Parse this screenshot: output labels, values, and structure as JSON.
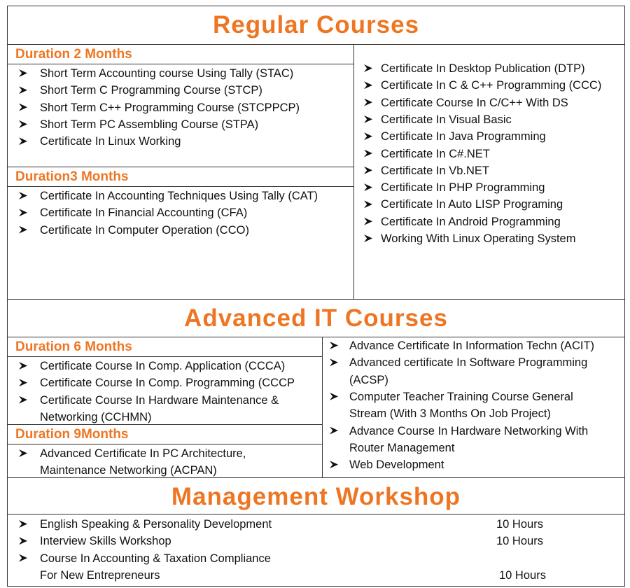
{
  "sections": [
    {
      "title": "Regular Courses",
      "groups": [
        {
          "heading": "Duration 2 Months",
          "items": [
            [
              "Short Term Accounting course Using Tally (STAC)"
            ],
            [
              "Short Term C Programming Course (STCP)"
            ],
            [
              "Short Term C++ Programming Course (STCPPCP)"
            ],
            [
              "Short Term PC Assembling Course (STPA)"
            ],
            [
              "Certificate In Linux Working"
            ]
          ]
        },
        {
          "heading": "Duration3 Months",
          "items": [
            [
              "Certificate In Accounting Techniques Using Tally (CAT)"
            ],
            [
              "Certificate In Financial Accounting (CFA)"
            ],
            [
              "Certificate In Computer Operation (CCO)"
            ]
          ]
        }
      ],
      "right_items": [
        [
          "Certificate In Desktop Publication (DTP)"
        ],
        [
          "Certificate In C & C++ Programming (CCC)"
        ],
        [
          "Certificate Course In C/C++ With DS"
        ],
        [
          "Certificate In Visual Basic"
        ],
        [
          "Certificate In Java Programming"
        ],
        [
          "Certificate In C#.NET"
        ],
        [
          "Certificate In Vb.NET"
        ],
        [
          "Certificate In PHP Programming"
        ],
        [
          "Certificate In Auto LISP Programing"
        ],
        [
          "Certificate In Android Programming"
        ],
        [
          "Working With Linux Operating System"
        ]
      ]
    },
    {
      "title": "Advanced IT Courses",
      "groups": [
        {
          "heading": "Duration 6 Months",
          "items": [
            [
              "Certificate Course In Comp. Application (CCCA)"
            ],
            [
              "Certificate Course In Comp. Programming (CCCP"
            ],
            [
              "Certificate Course In Hardware Maintenance &",
              "Networking (CCHMN)"
            ]
          ]
        },
        {
          "heading": "Duration 9Months",
          "items": [
            [
              "Advanced Certificate In PC Architecture,",
              "Maintenance  Networking (ACPAN)"
            ]
          ]
        }
      ],
      "right_items": [
        [
          "Advance Certificate In Information Techn (ACIT)"
        ],
        [
          "Advanced certificate In Software Programming",
          "(ACSP)"
        ],
        [
          "Computer Teacher Training Course General",
          "Stream (With 3 Months On Job Project)"
        ],
        [
          "Advance Course In Hardware Networking With",
          "Router Management"
        ],
        [
          "Web Development"
        ]
      ]
    },
    {
      "title": "Management Workshop",
      "items": [
        {
          "text": [
            "English Speaking & Personality Development"
          ],
          "hours": "10 Hours"
        },
        {
          "text": [
            "Interview Skills Workshop"
          ],
          "hours": "10 Hours"
        },
        {
          "text": [
            "Course In Accounting & Taxation Compliance",
            "For New Entrepreneurs"
          ],
          "hours": "10 Hours"
        }
      ]
    }
  ]
}
